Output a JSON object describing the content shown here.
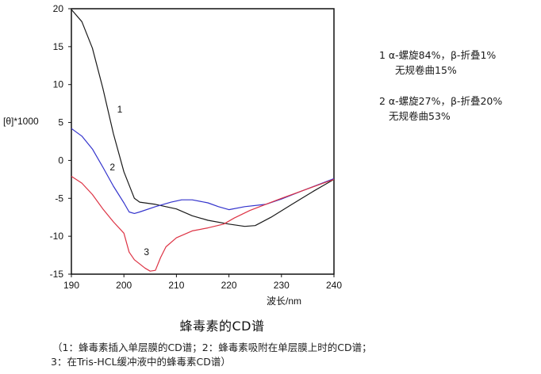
{
  "chart_data": {
    "type": "line",
    "title": "蜂毒素的CD谱",
    "xlabel": "波长/nm",
    "ylabel": "[θ]*1000",
    "xlim": [
      190,
      240
    ],
    "ylim": [
      -15,
      20
    ],
    "x_ticks": [
      190,
      200,
      210,
      220,
      230,
      240
    ],
    "y_ticks": [
      20,
      15,
      10,
      5,
      0,
      -5,
      -10,
      -15
    ],
    "grid": false,
    "series": [
      {
        "name": "1",
        "color": "#1a1a1a",
        "points": [
          [
            190,
            19.9
          ],
          [
            192,
            18.3
          ],
          [
            194,
            14.8
          ],
          [
            196,
            9.5
          ],
          [
            198,
            3.5
          ],
          [
            200,
            -1.5
          ],
          [
            202,
            -5.0
          ],
          [
            203,
            -5.5
          ],
          [
            206,
            -5.8
          ],
          [
            210,
            -6.4
          ],
          [
            213,
            -7.3
          ],
          [
            216,
            -7.9
          ],
          [
            220,
            -8.4
          ],
          [
            223,
            -8.7
          ],
          [
            225,
            -8.6
          ],
          [
            228,
            -7.5
          ],
          [
            232,
            -5.8
          ],
          [
            236,
            -4.1
          ],
          [
            238,
            -3.3
          ],
          [
            240,
            -2.5
          ]
        ]
      },
      {
        "name": "2",
        "color": "#3333cc",
        "points": [
          [
            190,
            4.2
          ],
          [
            192,
            3.2
          ],
          [
            194,
            1.5
          ],
          [
            196,
            -0.9
          ],
          [
            198,
            -3.4
          ],
          [
            200,
            -5.6
          ],
          [
            201,
            -6.8
          ],
          [
            202,
            -7.0
          ],
          [
            203,
            -6.8
          ],
          [
            206,
            -6.1
          ],
          [
            209,
            -5.5
          ],
          [
            211,
            -5.2
          ],
          [
            213,
            -5.2
          ],
          [
            216,
            -5.6
          ],
          [
            218,
            -6.1
          ],
          [
            220,
            -6.5
          ],
          [
            223,
            -6.1
          ],
          [
            227,
            -5.8
          ],
          [
            230,
            -5.1
          ],
          [
            234,
            -4.0
          ],
          [
            240,
            -2.4
          ]
        ]
      },
      {
        "name": "3",
        "color": "#dd3344",
        "points": [
          [
            190,
            -2.1
          ],
          [
            192,
            -3.0
          ],
          [
            194,
            -4.5
          ],
          [
            196,
            -6.4
          ],
          [
            198,
            -8.1
          ],
          [
            200,
            -9.6
          ],
          [
            201,
            -12.1
          ],
          [
            202,
            -13.1
          ],
          [
            204,
            -14.2
          ],
          [
            205,
            -14.6
          ],
          [
            206,
            -14.5
          ],
          [
            207,
            -12.8
          ],
          [
            208,
            -11.4
          ],
          [
            210,
            -10.2
          ],
          [
            213,
            -9.3
          ],
          [
            216,
            -8.9
          ],
          [
            219,
            -8.4
          ],
          [
            221,
            -7.6
          ],
          [
            224,
            -6.6
          ],
          [
            227,
            -5.8
          ],
          [
            230,
            -5.0
          ],
          [
            234,
            -4.0
          ],
          [
            238,
            -3.0
          ],
          [
            240,
            -2.5
          ]
        ]
      }
    ],
    "curve_labels": [
      {
        "text": "1",
        "x": 198.7,
        "y": 6.3
      },
      {
        "text": "2",
        "x": 197.3,
        "y": -1.3
      },
      {
        "text": "3",
        "x": 203.8,
        "y": -12.5
      }
    ],
    "legend_position": "right",
    "annotations": [
      "1 α-螺旋84%，β-折叠1% 无规卷曲15%",
      "2 α-螺旋27%，β-折叠20% 无规卷曲53%"
    ]
  },
  "axes": {
    "ylabel": "[θ]*1000",
    "xlabel": "波长/nm"
  },
  "legend": {
    "entry1": {
      "line1": "1 α-螺旋84%，β-折叠1%",
      "line2": "无规卷曲15%"
    },
    "entry2": {
      "line1": "2 α-螺旋27%，β-折叠20%",
      "line2": "无规卷曲53%"
    }
  },
  "title": "蜂毒素的CD谱",
  "caption": {
    "line1": "（1：蜂毒素插入单层膜的CD谱；2：蜂毒素吸附在单层膜上时的CD谱；",
    "line2": "3：在Tris-HCL缓冲液中的蜂毒素CD谱）"
  }
}
